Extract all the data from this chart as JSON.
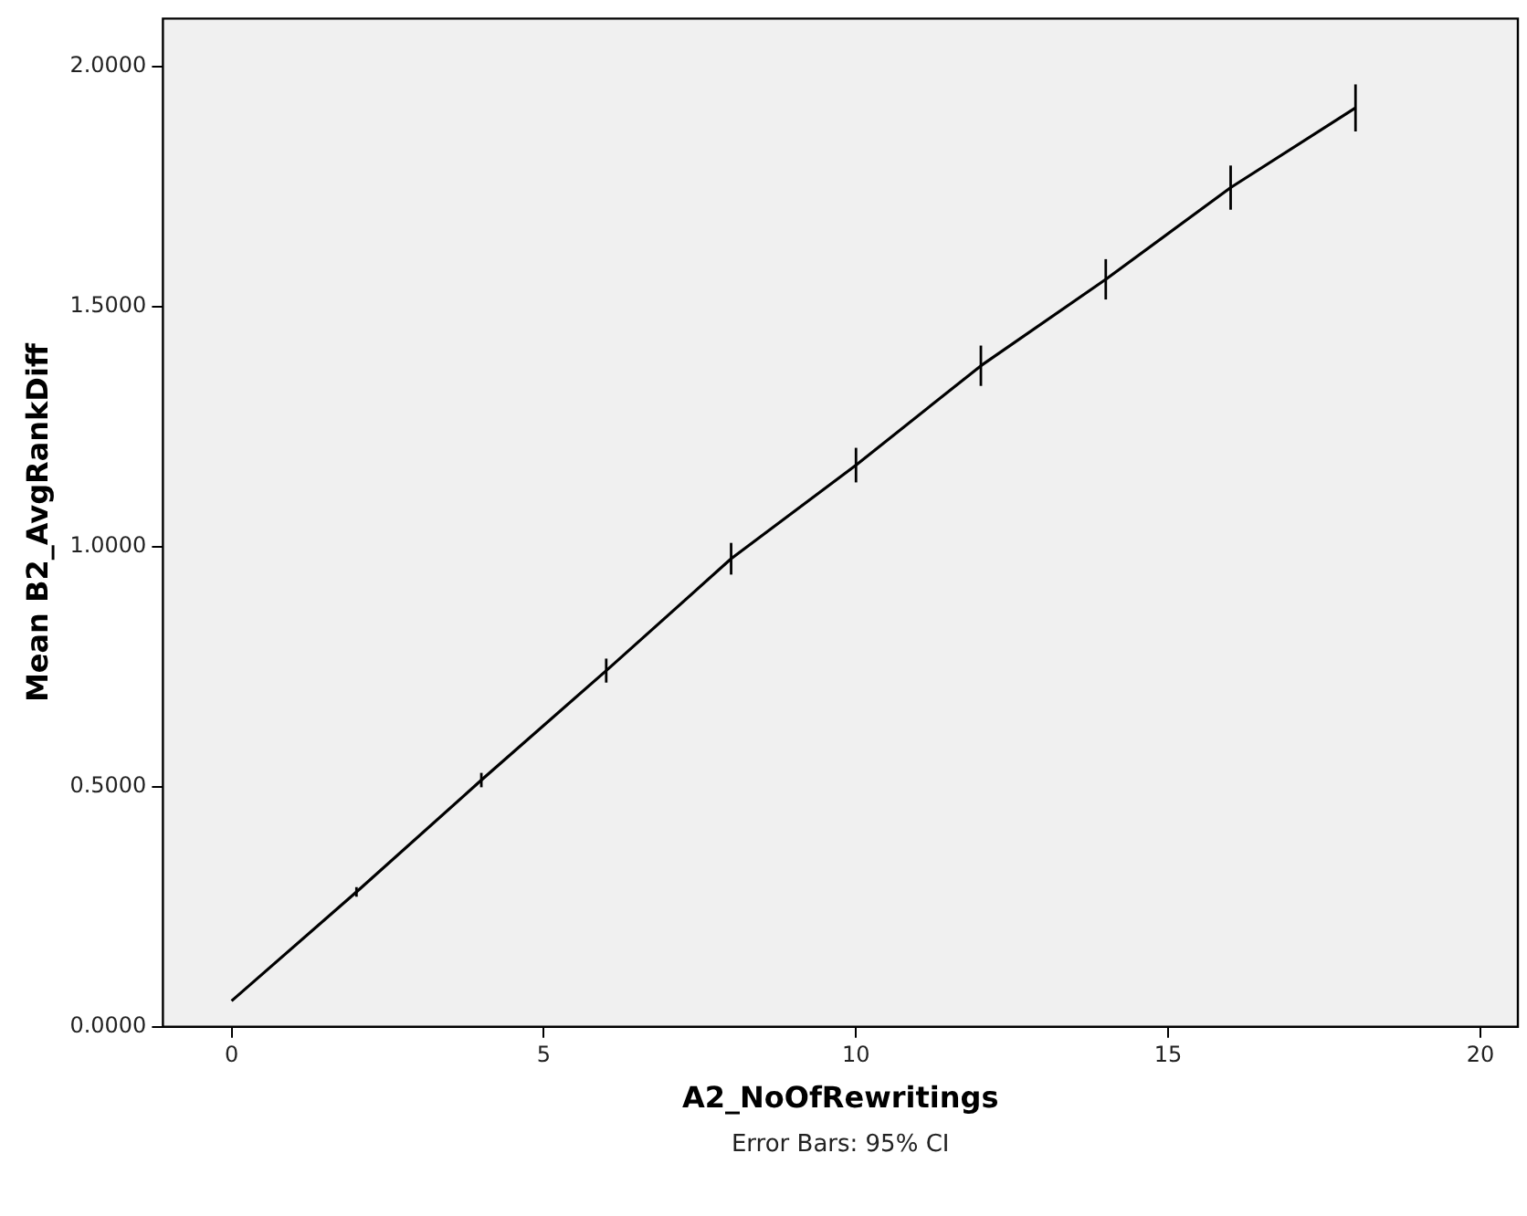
{
  "chart_data": {
    "type": "line",
    "xlabel": "A2_NoOfRewritings",
    "ylabel": "Mean B2_AvgRankDiff",
    "x": [
      0,
      2,
      4,
      6,
      8,
      10,
      12,
      14,
      16,
      18
    ],
    "series": [
      {
        "color": "#000000",
        "values": [
          0.054,
          0.281,
          0.514,
          0.742,
          0.975,
          1.17,
          1.377,
          1.557,
          1.748,
          1.914
        ],
        "errors": [
          null,
          0.01,
          0.015,
          0.025,
          0.033,
          0.036,
          0.042,
          0.042,
          0.046,
          0.049
        ]
      }
    ],
    "xlim": [
      -1.1,
      20.6
    ],
    "xticks": [
      0,
      5,
      10,
      15,
      20
    ],
    "ylim": [
      0,
      2.1
    ],
    "yticks": [
      {
        "value": 0,
        "label": "0.0000"
      },
      {
        "value": 0.5,
        "label": "0.5000"
      },
      {
        "value": 1,
        "label": "1.0000"
      },
      {
        "value": 1.5,
        "label": "1.5000"
      },
      {
        "value": 2,
        "label": "2.0000"
      }
    ],
    "grid": false,
    "legend": false,
    "marker": "none",
    "line_style": "solid",
    "annotations": [
      "Error Bars: 95% CI"
    ]
  }
}
